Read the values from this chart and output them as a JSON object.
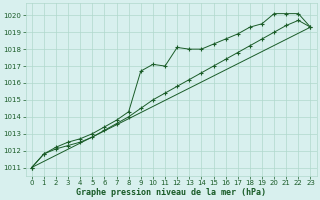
{
  "title": "Graphe pression niveau de la mer (hPa)",
  "background_color": "#d8f0ee",
  "grid_color": "#b0d8cc",
  "line_color": "#1a5c28",
  "xlim": [
    -0.5,
    23.5
  ],
  "ylim": [
    1010.5,
    1020.7
  ],
  "yticks": [
    1011,
    1012,
    1013,
    1014,
    1015,
    1016,
    1017,
    1018,
    1019,
    1020
  ],
  "xticks": [
    0,
    1,
    2,
    3,
    4,
    5,
    6,
    7,
    8,
    9,
    10,
    11,
    12,
    13,
    14,
    15,
    16,
    17,
    18,
    19,
    20,
    21,
    22,
    23
  ],
  "series_upper_x": [
    0,
    1,
    2,
    3,
    4,
    5,
    6,
    7,
    8,
    9,
    10,
    11,
    12,
    13,
    14,
    15,
    16,
    17,
    18,
    19,
    20,
    21,
    22,
    23
  ],
  "series_upper_y": [
    1011.0,
    1011.8,
    1012.2,
    1012.5,
    1012.7,
    1013.0,
    1013.4,
    1013.8,
    1014.3,
    1016.7,
    1017.1,
    1017.0,
    1018.1,
    1018.0,
    1018.0,
    1018.3,
    1018.6,
    1018.9,
    1019.3,
    1019.5,
    1020.1,
    1020.1,
    1020.1,
    1019.3
  ],
  "series_lower_x": [
    0,
    1,
    2,
    3,
    4,
    5,
    6,
    7,
    8,
    9,
    10,
    11,
    12,
    13,
    14,
    15,
    16,
    17,
    18,
    19,
    20,
    21,
    22,
    23
  ],
  "series_lower_y": [
    1011.0,
    1011.8,
    1012.1,
    1012.3,
    1012.5,
    1012.8,
    1013.2,
    1013.6,
    1014.0,
    1014.5,
    1015.0,
    1015.4,
    1015.8,
    1016.2,
    1016.6,
    1017.0,
    1017.4,
    1017.8,
    1018.2,
    1018.6,
    1019.0,
    1019.4,
    1019.7,
    1019.3
  ],
  "trend_x": [
    0,
    23
  ],
  "trend_y": [
    1011.0,
    1019.3
  ]
}
